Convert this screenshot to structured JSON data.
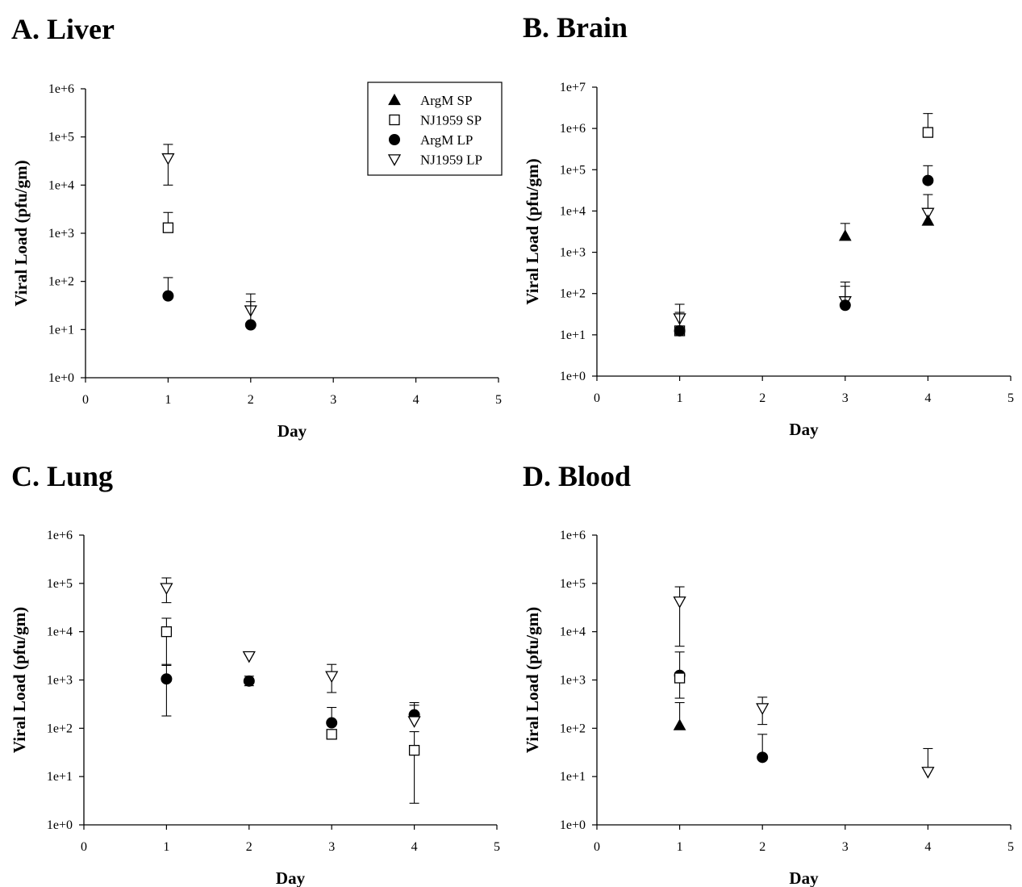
{
  "legend": {
    "entries": [
      {
        "label": "ArgM SP",
        "marker": "triangle-up-filled"
      },
      {
        "label": "NJ1959 SP",
        "marker": "square-open"
      },
      {
        "label": "ArgM LP",
        "marker": "circle-filled"
      },
      {
        "label": "NJ1959 LP",
        "marker": "triangle-down-open"
      }
    ],
    "panel": "A",
    "placement": "top-right"
  },
  "chart_data": [
    {
      "id": "A",
      "type": "scatter",
      "title": "A. Liver",
      "xlabel": "Day",
      "ylabel": "Viral Load (pfu/gm)",
      "xlim": [
        0,
        5
      ],
      "xticks": [
        "0",
        "1",
        "2",
        "3",
        "4",
        "5"
      ],
      "yscale": "log",
      "ylim": [
        1,
        1000000
      ],
      "yticks": [
        "1e+0",
        "1e+1",
        "1e+2",
        "1e+3",
        "1e+4",
        "1e+5",
        "1e+6"
      ],
      "points": [
        {
          "series": "NJ1959 LP",
          "x": 1,
          "y": 36000,
          "err_upper": 70000,
          "err_lower": 10000
        },
        {
          "series": "NJ1959 SP",
          "x": 1,
          "y": 1300,
          "err_upper": 2700
        },
        {
          "series": "ArgM LP",
          "x": 1,
          "y": 50,
          "err_upper": 120
        },
        {
          "series": "NJ1959 LP",
          "x": 2,
          "y": 25,
          "err_upper": 55
        },
        {
          "series": "ArgM LP",
          "x": 2,
          "y": 12.5,
          "err_upper": 38
        }
      ]
    },
    {
      "id": "B",
      "type": "scatter",
      "title": "B. Brain",
      "xlabel": "Day",
      "ylabel": "Viral Load (pfu/gm)",
      "xlim": [
        0,
        5
      ],
      "xticks": [
        "0",
        "1",
        "2",
        "3",
        "4",
        "5"
      ],
      "yscale": "log",
      "ylim": [
        1,
        10000000
      ],
      "yticks": [
        "1e+0",
        "1e+1",
        "1e+2",
        "1e+3",
        "1e+4",
        "1e+5",
        "1e+6",
        "1e+7"
      ],
      "points": [
        {
          "series": "NJ1959 LP",
          "x": 1,
          "y": 25,
          "err_upper": 55
        },
        {
          "series": "NJ1959 SP",
          "x": 1,
          "y": 12.5,
          "err_upper": 35
        },
        {
          "series": "ArgM LP",
          "x": 1,
          "y": 12.5
        },
        {
          "series": "ArgM SP",
          "x": 3,
          "y": 2500,
          "err_upper": 5000
        },
        {
          "series": "NJ1959 LP",
          "x": 3,
          "y": 65,
          "err_upper": 190
        },
        {
          "series": "ArgM LP",
          "x": 3,
          "y": 52,
          "err_upper": 150
        },
        {
          "series": "NJ1959 SP",
          "x": 4,
          "y": 800000,
          "err_upper": 2300000
        },
        {
          "series": "ArgM LP",
          "x": 4,
          "y": 55000,
          "err_upper": 125000
        },
        {
          "series": "NJ1959 LP",
          "x": 4,
          "y": 9000,
          "err_upper": 25000
        },
        {
          "series": "ArgM SP",
          "x": 4,
          "y": 5800
        }
      ]
    },
    {
      "id": "C",
      "type": "scatter",
      "title": "C. Lung",
      "xlabel": "Day",
      "ylabel": "Viral Load (pfu/gm)",
      "xlim": [
        0,
        5
      ],
      "xticks": [
        "0",
        "1",
        "2",
        "3",
        "4",
        "5"
      ],
      "yscale": "log",
      "ylim": [
        1,
        1000000
      ],
      "yticks": [
        "1e+0",
        "1e+1",
        "1e+2",
        "1e+3",
        "1e+4",
        "1e+5",
        "1e+6"
      ],
      "points": [
        {
          "series": "NJ1959 LP",
          "x": 1,
          "y": 80000,
          "err_upper": 130000,
          "err_lower": 40000
        },
        {
          "series": "NJ1959 SP",
          "x": 1,
          "y": 10000,
          "err_upper": 19000,
          "err_lower": 2000
        },
        {
          "series": "ArgM LP",
          "x": 1,
          "y": 1050,
          "err_upper": 2100,
          "err_lower": 180
        },
        {
          "series": "NJ1959 LP",
          "x": 2,
          "y": 3100,
          "err_upper": 3400
        },
        {
          "series": "ArgM LP",
          "x": 2,
          "y": 950,
          "err_upper": 1200,
          "err_lower": 760
        },
        {
          "series": "NJ1959 LP",
          "x": 3,
          "y": 1200,
          "err_upper": 2100,
          "err_lower": 550
        },
        {
          "series": "ArgM LP",
          "x": 3,
          "y": 130,
          "err_upper": 270
        },
        {
          "series": "NJ1959 SP",
          "x": 3,
          "y": 75
        },
        {
          "series": "ArgM LP",
          "x": 4,
          "y": 190,
          "err_upper": 340
        },
        {
          "series": "NJ1959 LP",
          "x": 4,
          "y": 140,
          "err_upper": 300
        },
        {
          "series": "NJ1959 SP",
          "x": 4,
          "y": 35,
          "err_upper": 85,
          "err_lower": 2.8
        }
      ]
    },
    {
      "id": "D",
      "type": "scatter",
      "title": "D. Blood",
      "xlabel": "Day",
      "ylabel": "Viral Load (pfu/gm)",
      "xlim": [
        0,
        5
      ],
      "xticks": [
        "0",
        "1",
        "2",
        "3",
        "4",
        "5"
      ],
      "yscale": "log",
      "ylim": [
        1,
        1000000
      ],
      "yticks": [
        "1e+0",
        "1e+1",
        "1e+2",
        "1e+3",
        "1e+4",
        "1e+5",
        "1e+6"
      ],
      "points": [
        {
          "series": "NJ1959 LP",
          "x": 1,
          "y": 42000,
          "err_upper": 85000,
          "err_lower": 5000
        },
        {
          "series": "ArgM LP",
          "x": 1,
          "y": 1250,
          "err_upper": 3800,
          "err_lower": 420
        },
        {
          "series": "NJ1959 SP",
          "x": 1,
          "y": 1100
        },
        {
          "series": "ArgM SP",
          "x": 1,
          "y": 115,
          "err_upper": 340
        },
        {
          "series": "NJ1959 LP",
          "x": 2,
          "y": 260,
          "err_upper": 440,
          "err_lower": 120
        },
        {
          "series": "ArgM LP",
          "x": 2,
          "y": 25,
          "err_upper": 75
        },
        {
          "series": "NJ1959 LP",
          "x": 4,
          "y": 12.5,
          "err_upper": 38
        }
      ]
    }
  ]
}
